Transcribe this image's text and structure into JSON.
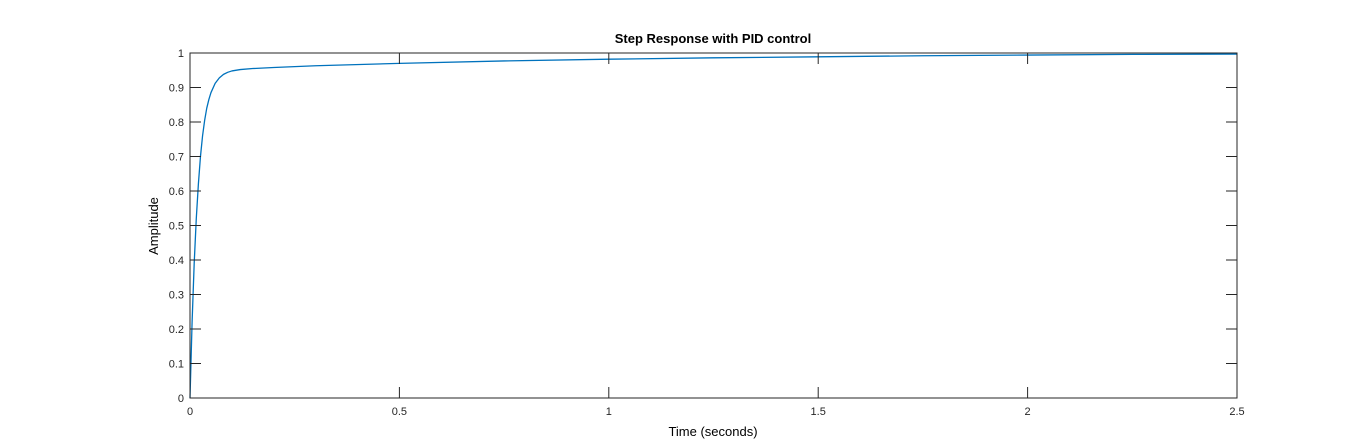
{
  "chart_data": {
    "type": "line",
    "title": "Step Response with PID control",
    "xlabel": "Time (seconds)",
    "ylabel": "Amplitude",
    "xlim": [
      0,
      2.5
    ],
    "ylim": [
      0,
      1
    ],
    "x_ticks": [
      "0",
      "0.5",
      "1",
      "1.5",
      "2",
      "2.5"
    ],
    "x_tick_values": [
      0,
      0.5,
      1,
      1.5,
      2,
      2.5
    ],
    "y_ticks": [
      "0",
      "0.1",
      "0.2",
      "0.3",
      "0.4",
      "0.5",
      "0.6",
      "0.7",
      "0.8",
      "0.9",
      "1"
    ],
    "y_tick_values": [
      0,
      0.1,
      0.2,
      0.3,
      0.4,
      0.5,
      0.6,
      0.7,
      0.8,
      0.9,
      1
    ],
    "grid": false,
    "reference_line": {
      "y": 1,
      "style": "dotted"
    },
    "series": [
      {
        "color": "#0072bd",
        "x": [
          0,
          0.005,
          0.01,
          0.015,
          0.02,
          0.025,
          0.03,
          0.035,
          0.04,
          0.045,
          0.05,
          0.06,
          0.07,
          0.08,
          0.09,
          0.1,
          0.12,
          0.15,
          0.2,
          0.3,
          0.5,
          0.75,
          1.0,
          1.25,
          1.5,
          1.75,
          2.0,
          2.25,
          2.5
        ],
        "y": [
          0,
          0.22,
          0.39,
          0.52,
          0.62,
          0.7,
          0.76,
          0.805,
          0.84,
          0.865,
          0.885,
          0.912,
          0.928,
          0.938,
          0.944,
          0.948,
          0.952,
          0.955,
          0.958,
          0.963,
          0.97,
          0.977,
          0.982,
          0.986,
          0.989,
          0.992,
          0.994,
          0.996,
          0.997
        ]
      }
    ]
  }
}
